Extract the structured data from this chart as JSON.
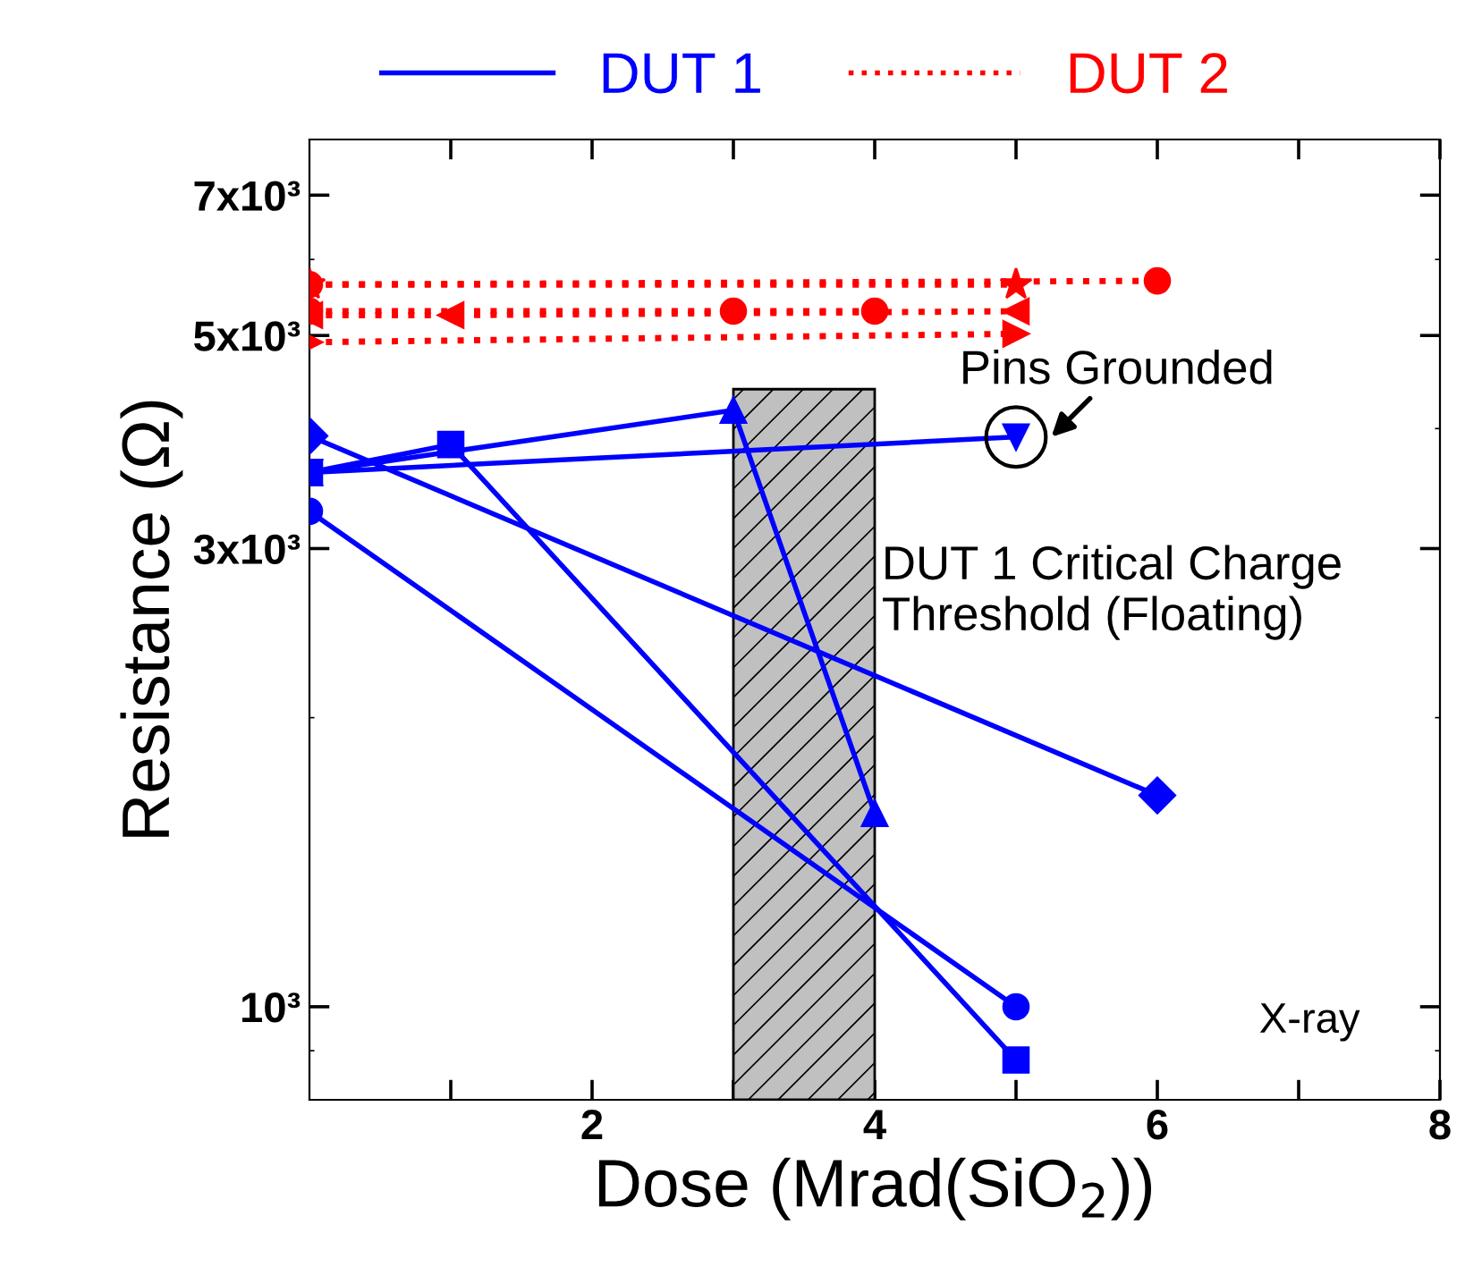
{
  "chart_data": {
    "type": "line",
    "xlabel": "Dose (Mrad(SiO$_{2}$))",
    "ylabel": "Resistance (Ω)",
    "log": "y",
    "xlim": [
      0,
      8
    ],
    "ylim": [
      800,
      8000
    ],
    "xticks": [
      {
        "value": 1,
        "label": null
      },
      2,
      {
        "value": 3,
        "label": null
      },
      4,
      {
        "value": 5,
        "label": null
      },
      6,
      {
        "value": 7,
        "label": null
      },
      8
    ],
    "yticks": [
      {
        "value": 1000,
        "label": "10³"
      },
      {
        "value": 3000,
        "label": "3x10³"
      },
      {
        "value": 5000,
        "label": "5x10³"
      },
      {
        "value": 7000,
        "label": "7x10³"
      }
    ],
    "legend": "top",
    "grid": false,
    "series": [
      {
        "name": "DUT 1",
        "color": "#0000ff",
        "line_style": "solid",
        "marker": "circle",
        "x": [
          0,
          5
        ],
        "values": [
          3280,
          1000
        ]
      },
      {
        "color": "#0000ff",
        "line_style": "solid",
        "marker": "square",
        "x": [
          0,
          1,
          5
        ],
        "values": [
          3600,
          3850,
          880
        ]
      },
      {
        "color": "#0000ff",
        "line_style": "solid",
        "marker": "triangle",
        "x": [
          0,
          3,
          4
        ],
        "values": [
          3600,
          4180,
          1590
        ]
      },
      {
        "color": "#0000ff",
        "line_style": "solid",
        "marker": "triangle_down",
        "x": [
          0,
          5
        ],
        "values": [
          3600,
          3920
        ]
      },
      {
        "color": "#0000ff",
        "line_style": "solid",
        "marker": "diamond",
        "x": [
          0,
          6
        ],
        "values": [
          3930,
          1660
        ]
      },
      {
        "name": "DUT 2",
        "color": "#ff0000",
        "line_style": "dotted",
        "marker": "circle",
        "x": [
          0,
          6
        ],
        "values": [
          5650,
          5700
        ]
      },
      {
        "color": "#ff0000",
        "line_style": "dotted",
        "marker": "star",
        "x": [
          0,
          5
        ],
        "values": [
          5650,
          5650
        ]
      },
      {
        "color": "#ff0000",
        "line_style": "dotted",
        "marker": "circle",
        "x": [
          0,
          3,
          4
        ],
        "values": [
          5300,
          5300,
          5300
        ]
      },
      {
        "color": "#ff0000",
        "line_style": "dotted",
        "marker": "triangle_left",
        "x": [
          0,
          1,
          5
        ],
        "values": [
          5250,
          5250,
          5300
        ]
      },
      {
        "color": "#ff0000",
        "line_style": "dotted",
        "marker": "triangle_right",
        "x": [
          0,
          5
        ],
        "values": [
          4920,
          5020
        ]
      }
    ],
    "bands": [
      {
        "axis": "x",
        "from": 3,
        "to": 4,
        "label": "DUT 1 Critical Charge Threshold (Floating)",
        "color": "#c0c0c0"
      }
    ],
    "annotations": [
      {
        "text": "Pins Grounded",
        "x": 5,
        "y": 3920
      },
      "X-ray"
    ]
  }
}
